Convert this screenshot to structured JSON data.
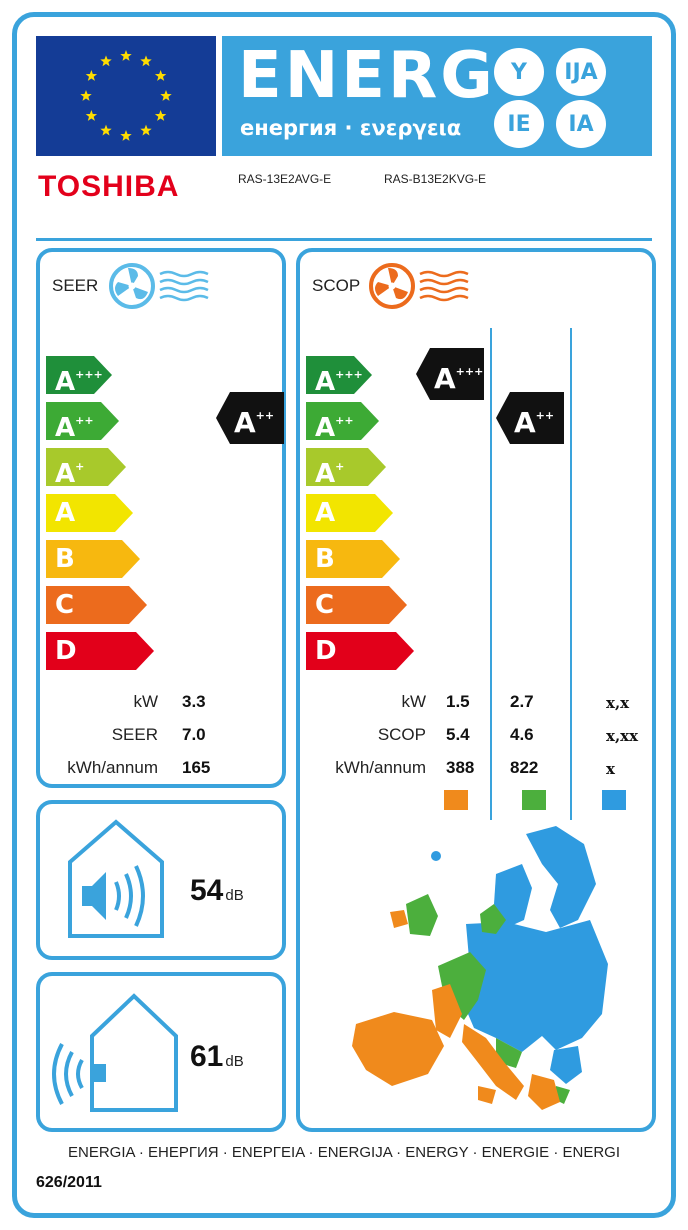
{
  "header": {
    "energ_word": "ENERG",
    "energ_subtitle": "енергия · ενεργεια",
    "suffixes": [
      "Y",
      "IJA",
      "IE",
      "IA"
    ],
    "brand": "TOSHIBA",
    "model_indoor": "RAS-13E2AVG-E",
    "model_outdoor": "RAS-B13E2KVG-E",
    "colors": {
      "frame": "#3aa3dc",
      "flag": "#143c96",
      "star": "#ffdd00",
      "brand": "#e3001b"
    }
  },
  "scale": [
    {
      "class": "A",
      "sup": "+++",
      "color": "#1f8f3a"
    },
    {
      "class": "A",
      "sup": "++",
      "color": "#3daa35"
    },
    {
      "class": "A",
      "sup": "+",
      "color": "#a8c92b"
    },
    {
      "class": "A",
      "sup": "",
      "color": "#f2e500"
    },
    {
      "class": "B",
      "sup": "",
      "color": "#f7b80f"
    },
    {
      "class": "C",
      "sup": "",
      "color": "#ec6b1d"
    },
    {
      "class": "D",
      "sup": "",
      "color": "#e2001a"
    }
  ],
  "seer": {
    "title": "SEER",
    "rating": {
      "class": "A",
      "sup": "++"
    },
    "rows": [
      {
        "label": "kW",
        "value": "3.3"
      },
      {
        "label": "SEER",
        "value": "7.0"
      },
      {
        "label": "kWh/annum",
        "value": "165"
      }
    ]
  },
  "scop": {
    "title": "SCOP",
    "ratings": [
      {
        "class": "A",
        "sup": "+++"
      },
      {
        "class": "A",
        "sup": "++"
      }
    ],
    "labels": [
      "kW",
      "SCOP",
      "kWh/annum"
    ],
    "columns": [
      {
        "zone": "warmer",
        "color": "#f08a1c",
        "values": [
          "1.5",
          "5.4",
          "388"
        ]
      },
      {
        "zone": "average",
        "color": "#4caf3d",
        "values": [
          "2.7",
          "4.6",
          "822"
        ]
      },
      {
        "zone": "colder",
        "color": "#2f9be0",
        "values": [
          "x,x",
          "x,xx",
          "x"
        ]
      }
    ]
  },
  "noise": {
    "indoor": {
      "value": "54",
      "unit": "dB",
      "icon": "indoor-speaker-house-icon"
    },
    "outdoor": {
      "value": "61",
      "unit": "dB",
      "icon": "outdoor-speaker-house-icon"
    }
  },
  "footer": {
    "languages": "ENERGIA · ЕНЕРГИЯ · ΕΝΕΡΓΕΙΑ · ENERGIJA · ENERGY · ENERGIE · ENERGI",
    "regulation": "626/2011"
  }
}
